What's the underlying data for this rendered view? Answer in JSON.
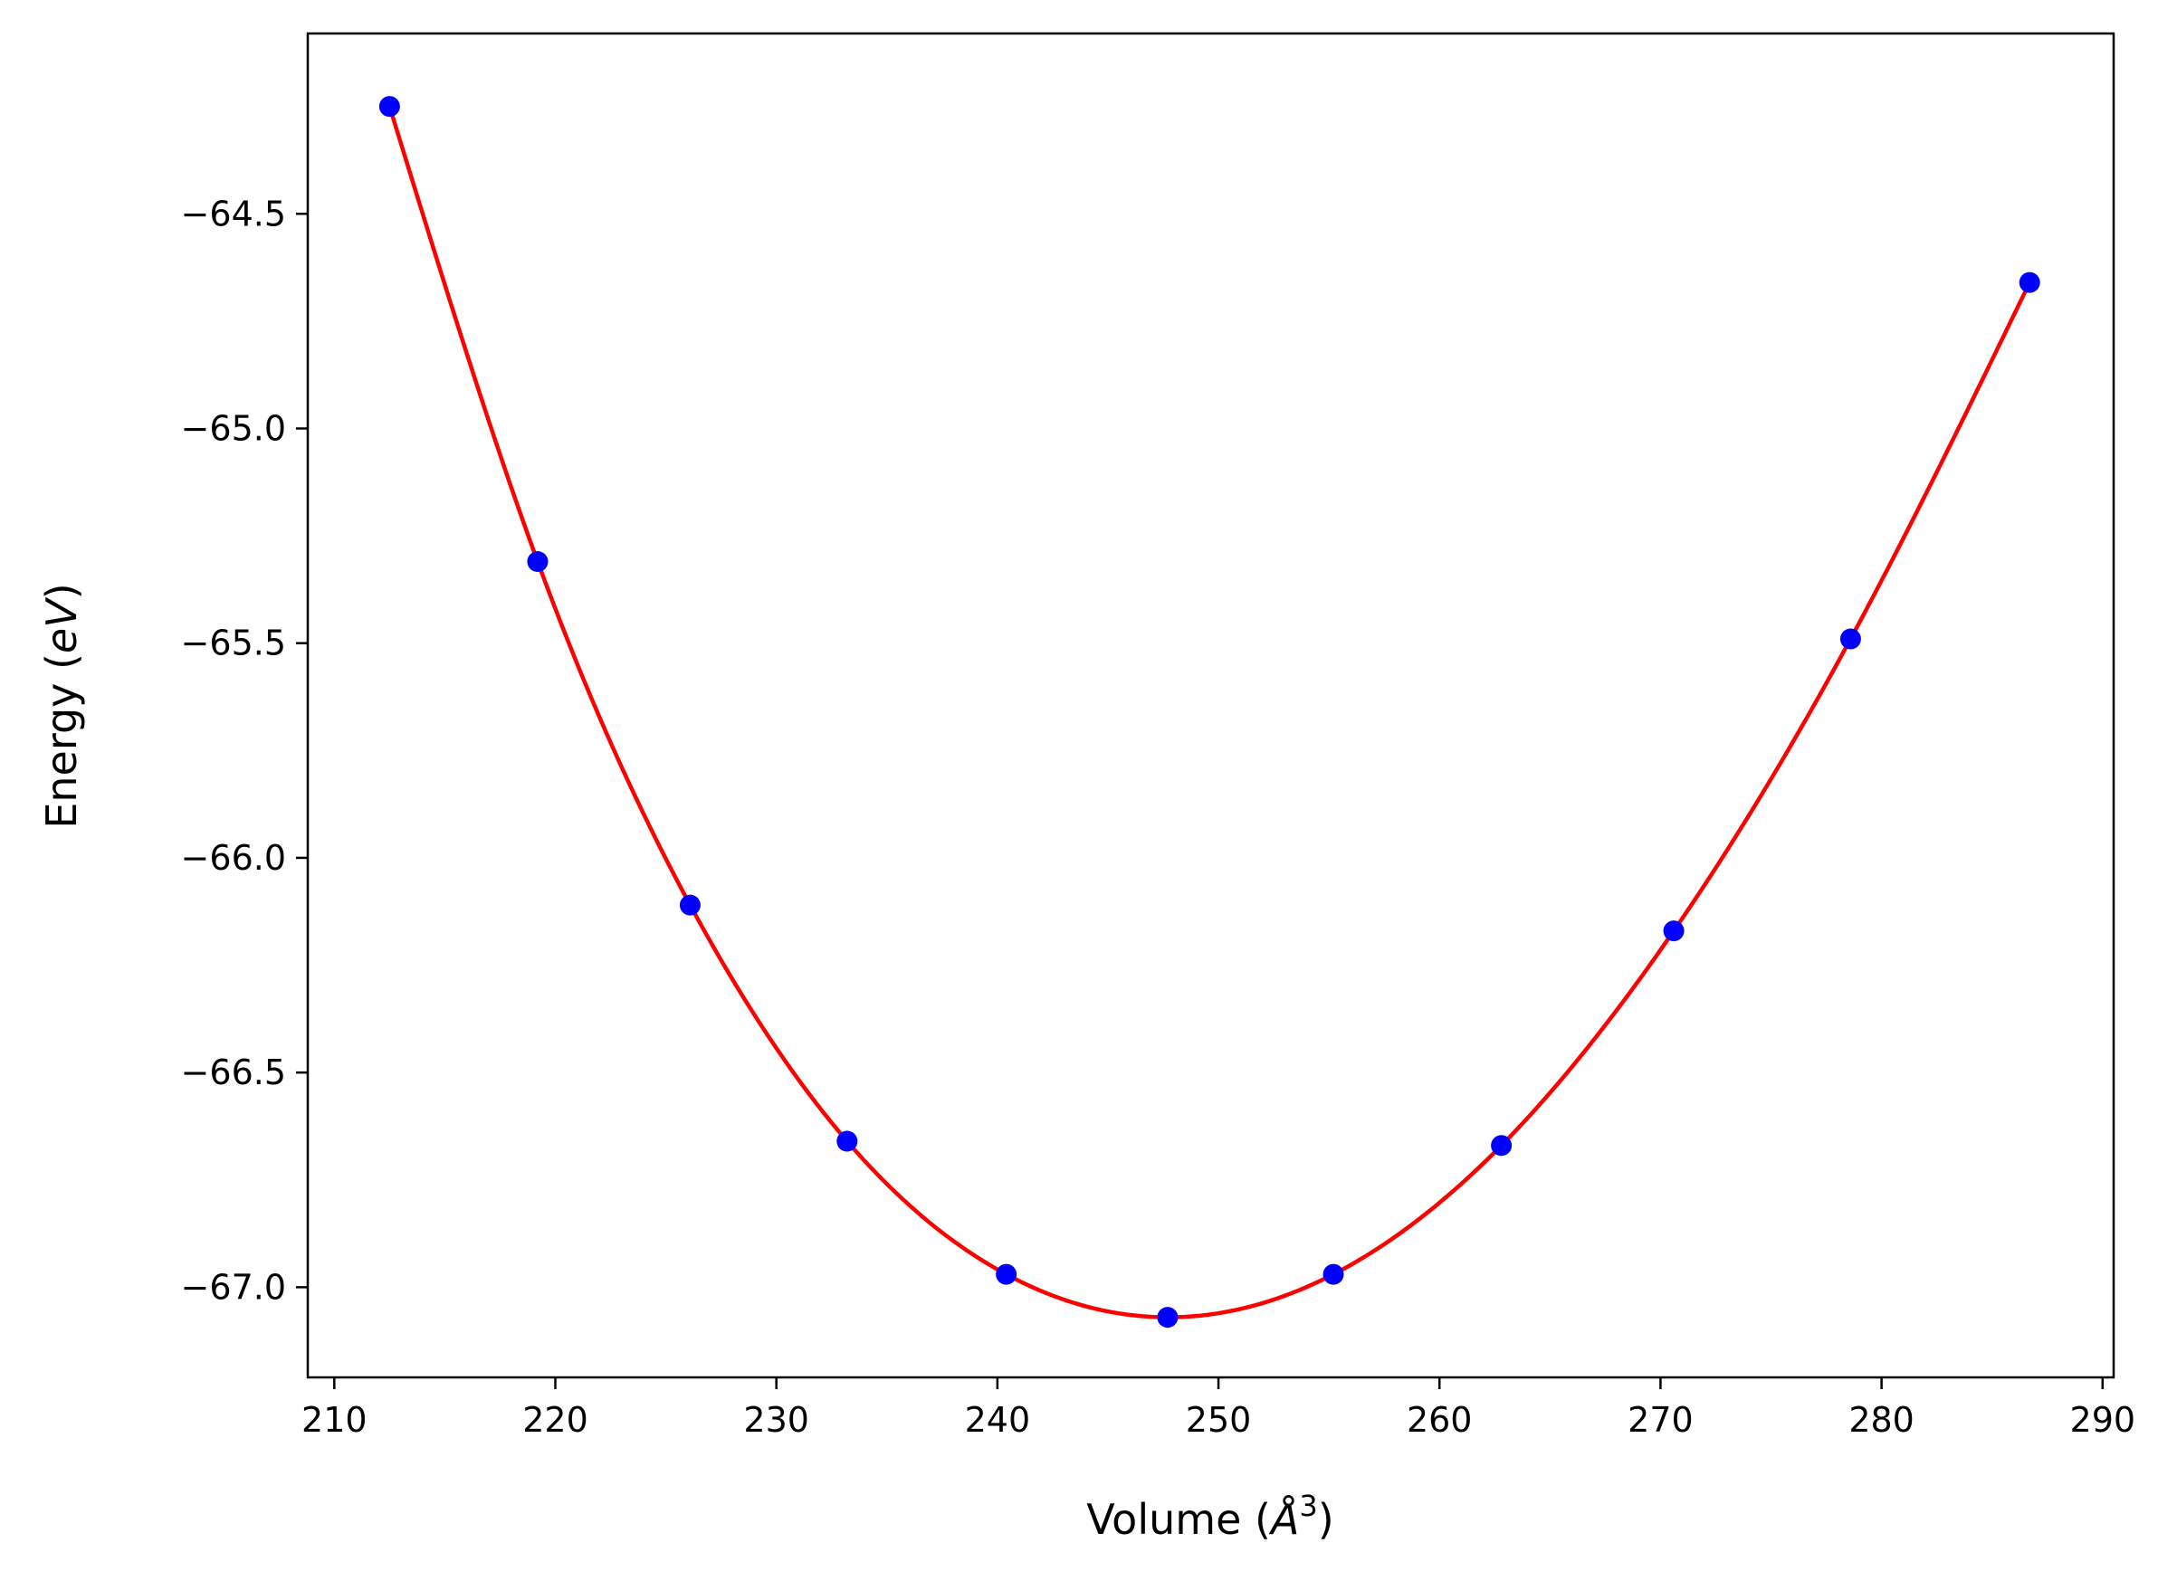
{
  "chart_data": {
    "type": "scatter",
    "xlabel": "Volume (",
    "xlabel_symbol": "Å",
    "xlabel_exponent": "3",
    "xlabel_close": ")",
    "ylabel": "Energy (",
    "ylabel_unit": "eV",
    "ylabel_close": ")",
    "xlim": [
      208.8,
      290.5
    ],
    "ylim": [
      -67.21,
      -64.08
    ],
    "xticks": [
      210,
      220,
      230,
      240,
      250,
      260,
      270,
      280,
      290
    ],
    "xtick_labels": [
      "210",
      "220",
      "230",
      "240",
      "250",
      "260",
      "270",
      "280",
      "290"
    ],
    "yticks": [
      -67.0,
      -66.5,
      -66.0,
      -65.5,
      -65.0,
      -64.5
    ],
    "ytick_labels": [
      "−67.0",
      "−66.5",
      "−66.0",
      "−65.5",
      "−65.0",
      "−64.5"
    ],
    "grid": false,
    "series": [
      {
        "kind": "points",
        "color": "#0000ff",
        "x": [
          212.5,
          219.2,
          226.1,
          233.2,
          240.4,
          247.7,
          255.2,
          262.8,
          270.6,
          278.6,
          286.7
        ],
        "y": [
          -64.25,
          -65.31,
          -66.11,
          -66.66,
          -66.97,
          -67.07,
          -66.97,
          -66.67,
          -66.17,
          -65.49,
          -64.66
        ]
      },
      {
        "kind": "fit-curve",
        "color": "#ff0000",
        "x": [
          212.5,
          219.2,
          226.1,
          233.2,
          240.4,
          247.7,
          255.2,
          262.8,
          270.6,
          278.6,
          286.7
        ],
        "y": [
          -64.25,
          -65.31,
          -66.11,
          -66.66,
          -66.97,
          -67.07,
          -66.97,
          -66.67,
          -66.17,
          -65.49,
          -64.66
        ]
      }
    ]
  }
}
